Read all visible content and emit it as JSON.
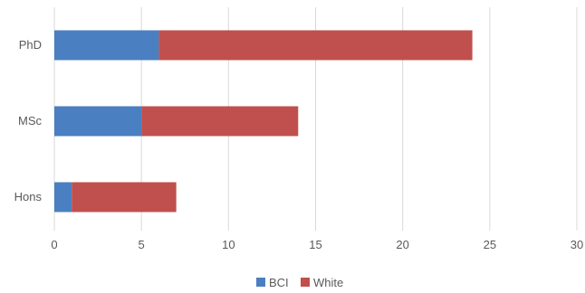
{
  "chart_data": {
    "type": "bar",
    "orientation": "horizontal",
    "stacked": true,
    "title": "",
    "xlabel": "",
    "ylabel": "",
    "categories": [
      "PhD",
      "MSc",
      "Hons"
    ],
    "series": [
      {
        "name": "BCI",
        "color": "#4a7fc1",
        "values": [
          6,
          5,
          1
        ]
      },
      {
        "name": "White",
        "color": "#c0504d",
        "values": [
          18,
          9,
          6
        ]
      }
    ],
    "xlim": [
      0,
      30
    ],
    "xticks": [
      "0",
      "5",
      "10",
      "15",
      "20",
      "25",
      "30"
    ],
    "grid": true,
    "legend": "bottom"
  }
}
